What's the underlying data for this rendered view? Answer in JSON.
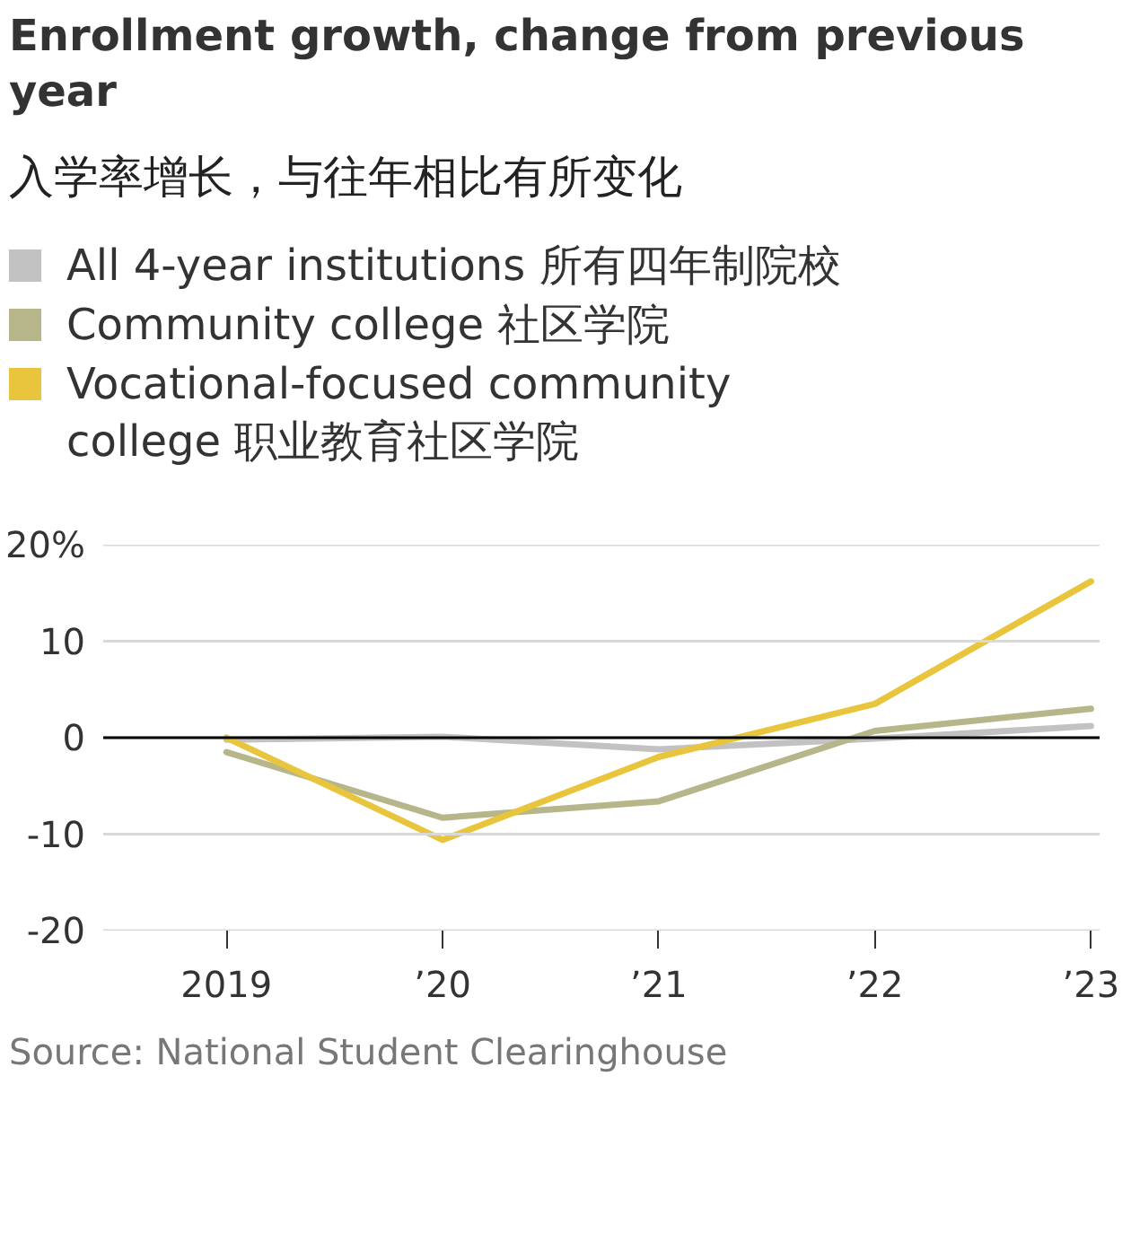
{
  "chart_data": {
    "type": "line",
    "title": "Enrollment growth, change from previous year",
    "subtitle": "入学率增长，与往年相比有所变化",
    "x": [
      2019,
      2020,
      2021,
      2022,
      2023
    ],
    "series": [
      {
        "name": "All 4-year institutions 所有四年制院校",
        "color": "#c2c2c2",
        "values": [
          -0.2,
          0.1,
          -1.2,
          -0.1,
          1.2
        ]
      },
      {
        "name": "Community college 社区学院",
        "color": "#b6b68a",
        "values": [
          -1.5,
          -8.3,
          -6.6,
          0.7,
          3.0
        ]
      },
      {
        "name": "Vocational-focused community college 职业教育社区学院",
        "color": "#e8c53c",
        "values": [
          0,
          -10.6,
          -2.0,
          3.5,
          16.2
        ]
      }
    ],
    "xlim": [
      2018.43,
      2023.04
    ],
    "xticks": [
      2019,
      {
        "value": 2020,
        "label": "’20"
      },
      {
        "value": 2021,
        "label": "’21"
      },
      {
        "value": 2022,
        "label": "’22"
      },
      {
        "value": 2023,
        "label": "’23"
      }
    ],
    "ylim": [
      -20,
      20
    ],
    "yticks": [
      {
        "value": 20,
        "label": "20%"
      },
      10,
      0,
      -10,
      -20
    ],
    "grid": "y",
    "legend": "top",
    "ref_lines": [
      {
        "axis": "y",
        "value": 0,
        "color": "#000000"
      }
    ],
    "annotations": [
      "Source: National Student Clearinghouse"
    ]
  }
}
